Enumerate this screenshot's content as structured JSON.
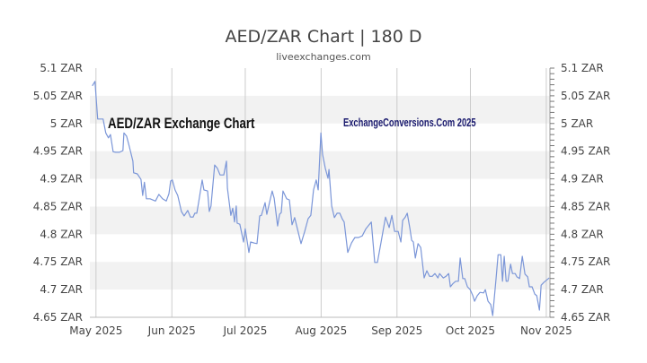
{
  "chart_data": {
    "type": "line",
    "title": "AED/ZAR Chart | 180 D",
    "subtitle": "liveexchanges.com",
    "watermark_left": "AED/ZAR Exchange Chart",
    "watermark_right": "ExchangeConversions.Com 2025",
    "xlabel": "",
    "ylabel": "",
    "x_unit": "days since 1 May 2025",
    "xlim": [
      -2.5,
      185.5
    ],
    "ylim": [
      4.65,
      5.1
    ],
    "y_ticks": [
      5.1,
      5.05,
      5.0,
      4.95,
      4.9,
      4.85,
      4.8,
      4.75,
      4.7,
      4.65
    ],
    "y_tick_labels": [
      "5.1 ZAR",
      "5.05 ZAR",
      "5 ZAR",
      "4.95 ZAR",
      "4.9 ZAR",
      "4.85 ZAR",
      "4.8 ZAR",
      "4.75 ZAR",
      "4.7 ZAR",
      "4.65 ZAR"
    ],
    "x_ticks": [
      {
        "day": 0,
        "label": "May 2025"
      },
      {
        "day": 31,
        "label": "Jun 2025"
      },
      {
        "day": 61,
        "label": "Jul 2025"
      },
      {
        "day": 92,
        "label": "Aug 2025"
      },
      {
        "day": 123,
        "label": "Sep 2025"
      },
      {
        "day": 153,
        "label": "Oct 2025"
      },
      {
        "day": 184,
        "label": "Nov 2025"
      }
    ],
    "grid": true,
    "shaded_bands": [
      [
        5.0,
        5.05
      ],
      [
        4.9,
        4.95
      ],
      [
        4.8,
        4.85
      ],
      [
        4.7,
        4.75
      ]
    ],
    "colors": {
      "line": "#7b96d8",
      "band": "#f2f2f2",
      "grid": "#cccccc",
      "watermark_right": "#1a1a6e"
    },
    "series": [
      {
        "name": "AED/ZAR",
        "points": [
          [
            -1.5,
            5.068
          ],
          [
            -0.4,
            5.076
          ],
          [
            0.7,
            5.008
          ],
          [
            2.9,
            5.008
          ],
          [
            4.0,
            4.983
          ],
          [
            5.1,
            4.974
          ],
          [
            5.9,
            4.98
          ],
          [
            7.0,
            4.949
          ],
          [
            8.1,
            4.948
          ],
          [
            9.6,
            4.948
          ],
          [
            11.0,
            4.951
          ],
          [
            11.4,
            4.983
          ],
          [
            12.5,
            4.977
          ],
          [
            13.6,
            4.959
          ],
          [
            15.1,
            4.932
          ],
          [
            15.4,
            4.911
          ],
          [
            16.9,
            4.909
          ],
          [
            18.4,
            4.899
          ],
          [
            19.1,
            4.87
          ],
          [
            19.8,
            4.894
          ],
          [
            20.6,
            4.864
          ],
          [
            22.1,
            4.864
          ],
          [
            24.3,
            4.86
          ],
          [
            25.7,
            4.872
          ],
          [
            27.2,
            4.864
          ],
          [
            28.7,
            4.86
          ],
          [
            29.8,
            4.873
          ],
          [
            30.5,
            4.896
          ],
          [
            31.2,
            4.898
          ],
          [
            32.3,
            4.88
          ],
          [
            33.4,
            4.87
          ],
          [
            34.9,
            4.841
          ],
          [
            36.0,
            4.833
          ],
          [
            37.5,
            4.843
          ],
          [
            38.6,
            4.831
          ],
          [
            39.7,
            4.831
          ],
          [
            40.4,
            4.838
          ],
          [
            41.2,
            4.838
          ],
          [
            41.9,
            4.856
          ],
          [
            43.4,
            4.898
          ],
          [
            44.1,
            4.88
          ],
          [
            45.6,
            4.878
          ],
          [
            46.3,
            4.841
          ],
          [
            47.0,
            4.851
          ],
          [
            48.5,
            4.925
          ],
          [
            49.6,
            4.919
          ],
          [
            50.7,
            4.907
          ],
          [
            52.2,
            4.907
          ],
          [
            53.3,
            4.932
          ],
          [
            53.7,
            4.883
          ],
          [
            55.1,
            4.834
          ],
          [
            55.9,
            4.847
          ],
          [
            56.6,
            4.822
          ],
          [
            57.3,
            4.851
          ],
          [
            57.7,
            4.82
          ],
          [
            58.8,
            4.818
          ],
          [
            60.3,
            4.786
          ],
          [
            61.0,
            4.81
          ],
          [
            62.5,
            4.767
          ],
          [
            63.2,
            4.786
          ],
          [
            64.7,
            4.784
          ],
          [
            65.8,
            4.783
          ],
          [
            66.9,
            4.833
          ],
          [
            67.6,
            4.834
          ],
          [
            69.1,
            4.857
          ],
          [
            69.8,
            4.836
          ],
          [
            72.0,
            4.878
          ],
          [
            72.8,
            4.865
          ],
          [
            74.2,
            4.815
          ],
          [
            75.0,
            4.836
          ],
          [
            75.7,
            4.839
          ],
          [
            76.4,
            4.878
          ],
          [
            77.9,
            4.864
          ],
          [
            79.0,
            4.862
          ],
          [
            80.1,
            4.817
          ],
          [
            81.2,
            4.83
          ],
          [
            83.8,
            4.783
          ],
          [
            85.3,
            4.805
          ],
          [
            86.7,
            4.828
          ],
          [
            87.8,
            4.834
          ],
          [
            88.9,
            4.88
          ],
          [
            90.0,
            4.898
          ],
          [
            90.8,
            4.88
          ],
          [
            91.9,
            4.983
          ],
          [
            92.6,
            4.944
          ],
          [
            93.7,
            4.919
          ],
          [
            94.8,
            4.901
          ],
          [
            95.2,
            4.917
          ],
          [
            96.3,
            4.851
          ],
          [
            97.4,
            4.83
          ],
          [
            98.5,
            4.838
          ],
          [
            99.6,
            4.838
          ],
          [
            100.7,
            4.827
          ],
          [
            101.4,
            4.822
          ],
          [
            102.9,
            4.767
          ],
          [
            104.4,
            4.784
          ],
          [
            105.8,
            4.794
          ],
          [
            107.3,
            4.794
          ],
          [
            108.8,
            4.797
          ],
          [
            110.3,
            4.81
          ],
          [
            112.5,
            4.822
          ],
          [
            113.9,
            4.749
          ],
          [
            115.0,
            4.749
          ],
          [
            116.5,
            4.786
          ],
          [
            118.3,
            4.831
          ],
          [
            119.8,
            4.812
          ],
          [
            120.9,
            4.834
          ],
          [
            122.0,
            4.805
          ],
          [
            123.5,
            4.805
          ],
          [
            124.6,
            4.786
          ],
          [
            125.3,
            4.825
          ],
          [
            126.4,
            4.831
          ],
          [
            127.2,
            4.838
          ],
          [
            128.3,
            4.81
          ],
          [
            129.0,
            4.789
          ],
          [
            129.7,
            4.786
          ],
          [
            130.5,
            4.757
          ],
          [
            131.6,
            4.783
          ],
          [
            132.7,
            4.776
          ],
          [
            134.1,
            4.721
          ],
          [
            135.2,
            4.734
          ],
          [
            136.3,
            4.724
          ],
          [
            137.4,
            4.724
          ],
          [
            138.5,
            4.729
          ],
          [
            139.7,
            4.721
          ],
          [
            140.4,
            4.729
          ],
          [
            141.9,
            4.721
          ],
          [
            143.0,
            4.724
          ],
          [
            144.1,
            4.729
          ],
          [
            144.8,
            4.705
          ],
          [
            145.9,
            4.711
          ],
          [
            147.0,
            4.715
          ],
          [
            148.1,
            4.715
          ],
          [
            148.8,
            4.757
          ],
          [
            149.9,
            4.72
          ],
          [
            150.7,
            4.72
          ],
          [
            151.8,
            4.705
          ],
          [
            152.9,
            4.7
          ],
          [
            154.0,
            4.689
          ],
          [
            154.7,
            4.679
          ],
          [
            155.8,
            4.689
          ],
          [
            156.9,
            4.695
          ],
          [
            158.4,
            4.694
          ],
          [
            159.1,
            4.7
          ],
          [
            160.2,
            4.679
          ],
          [
            161.3,
            4.673
          ],
          [
            162.1,
            4.653
          ],
          [
            163.5,
            4.721
          ],
          [
            164.3,
            4.763
          ],
          [
            165.4,
            4.763
          ],
          [
            166.1,
            4.715
          ],
          [
            166.8,
            4.76
          ],
          [
            167.6,
            4.715
          ],
          [
            168.3,
            4.715
          ],
          [
            169.4,
            4.746
          ],
          [
            170.2,
            4.729
          ],
          [
            171.3,
            4.729
          ],
          [
            172.0,
            4.723
          ],
          [
            173.1,
            4.72
          ],
          [
            174.2,
            4.76
          ],
          [
            175.3,
            4.728
          ],
          [
            176.4,
            4.723
          ],
          [
            177.1,
            4.705
          ],
          [
            178.2,
            4.705
          ],
          [
            179.3,
            4.692
          ],
          [
            180.1,
            4.689
          ],
          [
            181.2,
            4.663
          ],
          [
            181.9,
            4.708
          ],
          [
            183.0,
            4.713
          ],
          [
            185.2,
            4.721
          ]
        ]
      }
    ]
  }
}
